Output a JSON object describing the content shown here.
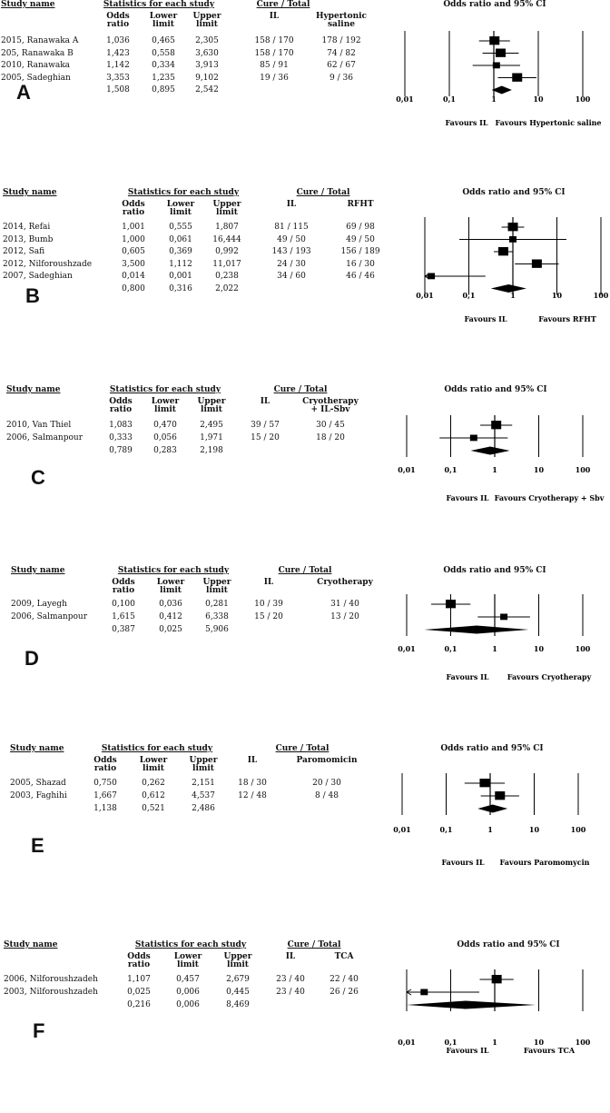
{
  "chart_data": [
    {
      "type": "forest",
      "panel_label": "A",
      "headers": {
        "study": "Study name",
        "stats": "Statistics for each study",
        "cure": "Cure / Total",
        "plot": "Odds ratio and 95% CI",
        "or": [
          "Odds",
          "ratio"
        ],
        "lower": [
          "Lower",
          "limit"
        ],
        "upper": [
          "Upper",
          "limit"
        ],
        "group1": [
          "IL"
        ],
        "group2": [
          "Hypertonic",
          "saline"
        ]
      },
      "studies": [
        {
          "name": "2015, Ranawaka A",
          "or": "1,036",
          "lower": "0,465",
          "upper": "2,305",
          "g1": "158 / 170",
          "g2": "178 / 192",
          "or_v": 1.036,
          "lo_v": 0.465,
          "hi_v": 2.305
        },
        {
          "name": "205, Ranawaka B",
          "or": "1,423",
          "lower": "0,558",
          "upper": "3,630",
          "g1": "158 / 170",
          "g2": "74 / 82",
          "or_v": 1.423,
          "lo_v": 0.558,
          "hi_v": 3.63
        },
        {
          "name": "2010, Ranawaka",
          "or": "1,142",
          "lower": "0,334",
          "upper": "3,913",
          "g1": "85 / 91",
          "g2": "62 / 67",
          "or_v": 1.142,
          "lo_v": 0.334,
          "hi_v": 3.913
        },
        {
          "name": "2005, Sadeghian",
          "or": "3,353",
          "lower": "1,235",
          "upper": "9,102",
          "g1": "19 / 36",
          "g2": "9 / 36",
          "or_v": 3.353,
          "lo_v": 1.235,
          "hi_v": 9.102
        }
      ],
      "pooled": {
        "or": "1,508",
        "lower": "0,895",
        "upper": "2,542",
        "or_v": 1.508,
        "lo_v": 0.895,
        "hi_v": 2.542
      },
      "x_ticks": [
        "0,01",
        "0,1",
        "1",
        "10",
        "100"
      ],
      "favours_left": "Favours IL",
      "favours_right": "Favours Hypertonic saline"
    },
    {
      "type": "forest",
      "panel_label": "B",
      "headers": {
        "study": "Study name",
        "stats": "Statistics for each study",
        "cure": "Cure / Total",
        "plot": "Odds ratio and 95% CI",
        "or": [
          "Odds",
          "ratio"
        ],
        "lower": [
          "Lower",
          "limit"
        ],
        "upper": [
          "Upper",
          "limit"
        ],
        "group1": [
          "IL"
        ],
        "group2": [
          "RFHT"
        ]
      },
      "studies": [
        {
          "name": "2014, Refai",
          "or": "1,001",
          "lower": "0,555",
          "upper": "1,807",
          "g1": "81 / 115",
          "g2": "69 / 98",
          "or_v": 1.001,
          "lo_v": 0.555,
          "hi_v": 1.807
        },
        {
          "name": "2013, Bumb",
          "or": "1,000",
          "lower": "0,061",
          "upper": "16,444",
          "g1": "49 / 50",
          "g2": "49 / 50",
          "or_v": 1.0,
          "lo_v": 0.061,
          "hi_v": 16.444
        },
        {
          "name": "2012, Safi",
          "or": "0,605",
          "lower": "0,369",
          "upper": "0,992",
          "g1": "143 / 193",
          "g2": "156 / 189",
          "or_v": 0.605,
          "lo_v": 0.369,
          "hi_v": 0.992
        },
        {
          "name": "2012, Nilforoushzade",
          "or": "3,500",
          "lower": "1,112",
          "upper": "11,017",
          "g1": "24 / 30",
          "g2": "16 / 30",
          "or_v": 3.5,
          "lo_v": 1.112,
          "hi_v": 11.017
        },
        {
          "name": "2007, Sadeghian",
          "or": "0,014",
          "lower": "0,001",
          "upper": "0,238",
          "g1": "34 / 60",
          "g2": "46 / 46",
          "or_v": 0.014,
          "lo_v": 0.001,
          "hi_v": 0.238
        }
      ],
      "pooled": {
        "or": "0,800",
        "lower": "0,316",
        "upper": "2,022",
        "or_v": 0.8,
        "lo_v": 0.316,
        "hi_v": 2.022
      },
      "x_ticks": [
        "0,01",
        "0,1",
        "1",
        "10",
        "100"
      ],
      "favours_left": "Favours IL",
      "favours_right": "Favours RFHT"
    },
    {
      "type": "forest",
      "panel_label": "C",
      "headers": {
        "study": "Study name",
        "stats": "Statistics for each study",
        "cure": "Cure / Total",
        "plot": "Odds ratio and 95% CI",
        "or": [
          "Odds",
          "ratio"
        ],
        "lower": [
          "Lower",
          "limit"
        ],
        "upper": [
          "Upper",
          "limit"
        ],
        "group1": [
          "IL"
        ],
        "group2": [
          "Cryotherapy",
          "+ IL-Sbv"
        ]
      },
      "studies": [
        {
          "name": "2010, Van Thiel",
          "or": "1,083",
          "lower": "0,470",
          "upper": "2,495",
          "g1": "39 / 57",
          "g2": "30 / 45",
          "or_v": 1.083,
          "lo_v": 0.47,
          "hi_v": 2.495
        },
        {
          "name": "2006, Salmanpour",
          "or": "0,333",
          "lower": "0,056",
          "upper": "1,971",
          "g1": "15 / 20",
          "g2": "18 / 20",
          "or_v": 0.333,
          "lo_v": 0.056,
          "hi_v": 1.971
        }
      ],
      "pooled": {
        "or": "0,789",
        "lower": "0,283",
        "upper": "2,198",
        "or_v": 0.789,
        "lo_v": 0.283,
        "hi_v": 2.198
      },
      "x_ticks": [
        "0,01",
        "0,1",
        "1",
        "10",
        "100"
      ],
      "favours_left": "Favours IL",
      "favours_right": "Favours Cryotherapy + Sbv"
    },
    {
      "type": "forest",
      "panel_label": "D",
      "headers": {
        "study": "Study name",
        "stats": "Statistics for each study",
        "cure": "Cure / Total",
        "plot": "Odds ratio and 95% CI",
        "or": [
          "Odds",
          "ratio"
        ],
        "lower": [
          "Lower",
          "limit"
        ],
        "upper": [
          "Upper",
          "limit"
        ],
        "group1": [
          "IL"
        ],
        "group2": [
          "Cryotherapy"
        ]
      },
      "studies": [
        {
          "name": "2009, Layegh",
          "or": "0,100",
          "lower": "0,036",
          "upper": "0,281",
          "g1": "10 / 39",
          "g2": "31 / 40",
          "or_v": 0.1,
          "lo_v": 0.036,
          "hi_v": 0.281
        },
        {
          "name": "2006, Salmanpour",
          "or": "1,615",
          "lower": "0,412",
          "upper": "6,338",
          "g1": "15 / 20",
          "g2": "13 / 20",
          "or_v": 1.615,
          "lo_v": 0.412,
          "hi_v": 6.338
        }
      ],
      "pooled": {
        "or": "0,387",
        "lower": "0,025",
        "upper": "5,906",
        "or_v": 0.387,
        "lo_v": 0.025,
        "hi_v": 5.906
      },
      "x_ticks": [
        "0,01",
        "0,1",
        "1",
        "10",
        "100"
      ],
      "favours_left": "Favours IL",
      "favours_right": "Favours Cryotherapy"
    },
    {
      "type": "forest",
      "panel_label": "E",
      "headers": {
        "study": "Study name",
        "stats": "Statistics for each study",
        "cure": "Cure / Total",
        "plot": "Odds ratio and 95% CI",
        "or": [
          "Odds",
          "ratio"
        ],
        "lower": [
          "Lower",
          "limit"
        ],
        "upper": [
          "Upper",
          "limit"
        ],
        "group1": [
          "IL"
        ],
        "group2": [
          "Paromomicin"
        ]
      },
      "studies": [
        {
          "name": "2005, Shazad",
          "or": "0,750",
          "lower": "0,262",
          "upper": "2,151",
          "g1": "18 / 30",
          "g2": "20 / 30",
          "or_v": 0.75,
          "lo_v": 0.262,
          "hi_v": 2.151
        },
        {
          "name": "2003, Faghihi",
          "or": "1,667",
          "lower": "0,612",
          "upper": "4,537",
          "g1": "12 / 48",
          "g2": "8 / 48",
          "or_v": 1.667,
          "lo_v": 0.612,
          "hi_v": 4.537
        }
      ],
      "pooled": {
        "or": "1,138",
        "lower": "0,521",
        "upper": "2,486",
        "or_v": 1.138,
        "lo_v": 0.521,
        "hi_v": 2.486
      },
      "x_ticks": [
        "0,01",
        "0,1",
        "1",
        "10",
        "100"
      ],
      "favours_left": "Favours IL",
      "favours_right": "Favours Paromomycin"
    },
    {
      "type": "forest",
      "panel_label": "F",
      "headers": {
        "study": "Study name",
        "stats": "Statistics for each study",
        "cure": "Cure / Total",
        "plot": "Odds ratio and 95% CI",
        "or": [
          "Odds",
          "ratio"
        ],
        "lower": [
          "Lower",
          "limit"
        ],
        "upper": [
          "Upper",
          "limit"
        ],
        "group1": [
          "IL"
        ],
        "group2": [
          "TCA"
        ]
      },
      "studies": [
        {
          "name": "2006, Nilforoushzadeh",
          "or": "1,107",
          "lower": "0,457",
          "upper": "2,679",
          "g1": "23 / 40",
          "g2": "22 / 40",
          "or_v": 1.107,
          "lo_v": 0.457,
          "hi_v": 2.679
        },
        {
          "name": "2003, Nilforoushzadeh",
          "or": "0,025",
          "lower": "0,006",
          "upper": "0,445",
          "g1": "23 / 40",
          "g2": "26 / 26",
          "or_v": 0.025,
          "lo_v": 0.006,
          "hi_v": 0.445
        }
      ],
      "pooled": {
        "or": "0,216",
        "lower": "0,006",
        "upper": "8,469",
        "or_v": 0.216,
        "lo_v": 0.006,
        "hi_v": 8.469
      },
      "x_ticks": [
        "0,01",
        "0,1",
        "1",
        "10",
        "100"
      ],
      "favours_left": "Favours IL",
      "favours_right": "Favours TCA"
    }
  ]
}
